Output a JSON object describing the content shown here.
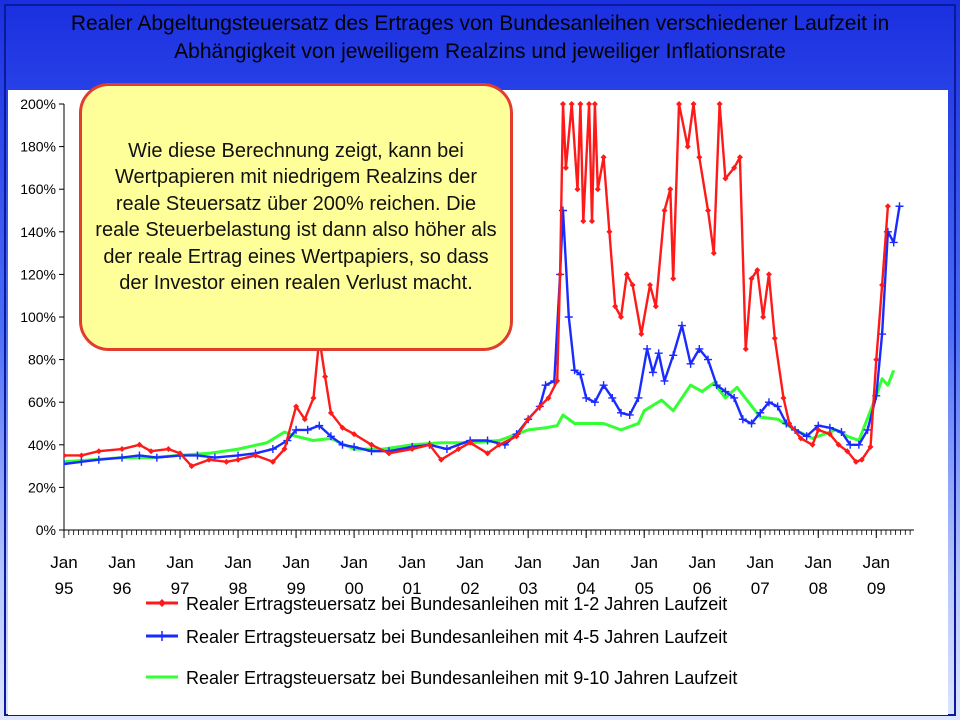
{
  "slide": {
    "title": "Realer Abgeltungsteuersatz des Ertrages von Bundesanleihen verschiedener Laufzeit in\nAbhängigkeit von jeweiligem Realzins und jeweiliger Inflationsrate",
    "callout": "Wie diese Berechnung zeigt, kann bei Wertpapieren mit niedrigem Realzins der reale Steuersatz über 200% reichen. Die reale Steuerbelastung ist dann also höher als der reale Ertrag eines Wertpapiers, so dass der Investor einen realen Verlust macht."
  },
  "chart_data": {
    "type": "line",
    "x_unit": "year",
    "xlim": [
      1995.0,
      2009.65
    ],
    "ylim": [
      0,
      200
    ],
    "y_format": "percent",
    "grid": false,
    "legend_position": "bottom",
    "y_ticks": [
      "0%",
      "20%",
      "40%",
      "60%",
      "80%",
      "100%",
      "120%",
      "140%",
      "160%",
      "180%",
      "200%"
    ],
    "x_ticks": [
      {
        "x": 1995,
        "top": "Jan",
        "bottom": "95"
      },
      {
        "x": 1996,
        "top": "Jan",
        "bottom": "96"
      },
      {
        "x": 1997,
        "top": "Jan",
        "bottom": "97"
      },
      {
        "x": 1998,
        "top": "Jan",
        "bottom": "98"
      },
      {
        "x": 1999,
        "top": "Jan",
        "bottom": "99"
      },
      {
        "x": 2000,
        "top": "Jan",
        "bottom": "00"
      },
      {
        "x": 2001,
        "top": "Jan",
        "bottom": "01"
      },
      {
        "x": 2002,
        "top": "Jan",
        "bottom": "02"
      },
      {
        "x": 2003,
        "top": "Jan",
        "bottom": "03"
      },
      {
        "x": 2004,
        "top": "Jan",
        "bottom": "04"
      },
      {
        "x": 2005,
        "top": "Jan",
        "bottom": "05"
      },
      {
        "x": 2006,
        "top": "Jan",
        "bottom": "06"
      },
      {
        "x": 2007,
        "top": "Jan",
        "bottom": "07"
      },
      {
        "x": 2008,
        "top": "Jan",
        "bottom": "08"
      },
      {
        "x": 2009,
        "top": "Jan",
        "bottom": "09"
      }
    ],
    "series": [
      {
        "name": "Realer Ertragsteuersatz bei Bundesanleihen mit 1-2 Jahren Laufzeit",
        "color": "#ff1a1a",
        "marker": "diamond",
        "points": [
          [
            1995.0,
            35
          ],
          [
            1995.3,
            35
          ],
          [
            1995.6,
            37
          ],
          [
            1996.0,
            38
          ],
          [
            1996.3,
            40
          ],
          [
            1996.5,
            37
          ],
          [
            1996.8,
            38
          ],
          [
            1997.0,
            36
          ],
          [
            1997.2,
            30
          ],
          [
            1997.5,
            33
          ],
          [
            1997.8,
            32
          ],
          [
            1998.0,
            33
          ],
          [
            1998.3,
            35
          ],
          [
            1998.6,
            32
          ],
          [
            1998.8,
            38
          ],
          [
            1999.0,
            58
          ],
          [
            1999.15,
            52
          ],
          [
            1999.3,
            62
          ],
          [
            1999.4,
            90
          ],
          [
            1999.5,
            72
          ],
          [
            1999.6,
            55
          ],
          [
            1999.8,
            48
          ],
          [
            2000.0,
            45
          ],
          [
            2000.3,
            40
          ],
          [
            2000.6,
            36
          ],
          [
            2001.0,
            38
          ],
          [
            2001.3,
            40
          ],
          [
            2001.5,
            33
          ],
          [
            2001.8,
            38
          ],
          [
            2002.0,
            41
          ],
          [
            2002.3,
            36
          ],
          [
            2002.5,
            40
          ],
          [
            2002.8,
            44
          ],
          [
            2003.0,
            52
          ],
          [
            2003.2,
            58
          ],
          [
            2003.35,
            62
          ],
          [
            2003.5,
            70
          ],
          [
            2003.55,
            120
          ],
          [
            2003.6,
            200
          ],
          [
            2003.65,
            170
          ],
          [
            2003.75,
            200
          ],
          [
            2003.85,
            160
          ],
          [
            2003.9,
            200
          ],
          [
            2003.95,
            145
          ],
          [
            2004.05,
            200
          ],
          [
            2004.1,
            145
          ],
          [
            2004.15,
            200
          ],
          [
            2004.2,
            160
          ],
          [
            2004.3,
            175
          ],
          [
            2004.4,
            140
          ],
          [
            2004.5,
            105
          ],
          [
            2004.6,
            100
          ],
          [
            2004.7,
            120
          ],
          [
            2004.8,
            115
          ],
          [
            2004.95,
            92
          ],
          [
            2005.1,
            115
          ],
          [
            2005.2,
            105
          ],
          [
            2005.35,
            150
          ],
          [
            2005.45,
            160
          ],
          [
            2005.5,
            118
          ],
          [
            2005.6,
            200
          ],
          [
            2005.75,
            180
          ],
          [
            2005.85,
            200
          ],
          [
            2005.95,
            175
          ],
          [
            2006.1,
            150
          ],
          [
            2006.2,
            130
          ],
          [
            2006.3,
            200
          ],
          [
            2006.4,
            165
          ],
          [
            2006.55,
            170
          ],
          [
            2006.65,
            175
          ],
          [
            2006.75,
            85
          ],
          [
            2006.85,
            118
          ],
          [
            2006.95,
            122
          ],
          [
            2007.05,
            100
          ],
          [
            2007.15,
            120
          ],
          [
            2007.25,
            90
          ],
          [
            2007.4,
            62
          ],
          [
            2007.5,
            50
          ],
          [
            2007.7,
            43
          ],
          [
            2007.9,
            40
          ],
          [
            2008.0,
            47
          ],
          [
            2008.2,
            45
          ],
          [
            2008.35,
            40
          ],
          [
            2008.5,
            37
          ],
          [
            2008.65,
            32
          ],
          [
            2008.75,
            33
          ],
          [
            2008.9,
            39
          ],
          [
            2009.0,
            80
          ],
          [
            2009.1,
            115
          ],
          [
            2009.2,
            152
          ]
        ]
      },
      {
        "name": "Realer Ertragsteuersatz bei Bundesanleihen mit 4-5 Jahren Laufzeit",
        "color": "#1a2bff",
        "marker": "plus",
        "points": [
          [
            1995.0,
            31
          ],
          [
            1995.3,
            32
          ],
          [
            1995.6,
            33
          ],
          [
            1996.0,
            34
          ],
          [
            1996.3,
            35
          ],
          [
            1996.6,
            34
          ],
          [
            1997.0,
            35
          ],
          [
            1997.3,
            35
          ],
          [
            1997.6,
            34
          ],
          [
            1998.0,
            35
          ],
          [
            1998.3,
            36
          ],
          [
            1998.6,
            38
          ],
          [
            1998.85,
            42
          ],
          [
            1999.0,
            47
          ],
          [
            1999.2,
            47
          ],
          [
            1999.4,
            49
          ],
          [
            1999.6,
            44
          ],
          [
            1999.8,
            40
          ],
          [
            2000.0,
            39
          ],
          [
            2000.3,
            37
          ],
          [
            2000.6,
            37
          ],
          [
            2001.0,
            39
          ],
          [
            2001.3,
            40
          ],
          [
            2001.6,
            38
          ],
          [
            2002.0,
            42
          ],
          [
            2002.3,
            42
          ],
          [
            2002.6,
            40
          ],
          [
            2002.8,
            45
          ],
          [
            2003.0,
            52
          ],
          [
            2003.2,
            58
          ],
          [
            2003.3,
            68
          ],
          [
            2003.45,
            70
          ],
          [
            2003.55,
            120
          ],
          [
            2003.6,
            150
          ],
          [
            2003.7,
            100
          ],
          [
            2003.8,
            75
          ],
          [
            2003.9,
            73
          ],
          [
            2004.0,
            62
          ],
          [
            2004.15,
            60
          ],
          [
            2004.3,
            68
          ],
          [
            2004.45,
            62
          ],
          [
            2004.6,
            55
          ],
          [
            2004.75,
            54
          ],
          [
            2004.9,
            62
          ],
          [
            2005.05,
            85
          ],
          [
            2005.15,
            74
          ],
          [
            2005.25,
            83
          ],
          [
            2005.35,
            70
          ],
          [
            2005.5,
            82
          ],
          [
            2005.65,
            96
          ],
          [
            2005.8,
            78
          ],
          [
            2005.95,
            85
          ],
          [
            2006.1,
            80
          ],
          [
            2006.25,
            68
          ],
          [
            2006.4,
            65
          ],
          [
            2006.55,
            62
          ],
          [
            2006.7,
            52
          ],
          [
            2006.85,
            50
          ],
          [
            2007.0,
            55
          ],
          [
            2007.15,
            60
          ],
          [
            2007.3,
            58
          ],
          [
            2007.45,
            50
          ],
          [
            2007.6,
            47
          ],
          [
            2007.8,
            44
          ],
          [
            2008.0,
            49
          ],
          [
            2008.2,
            48
          ],
          [
            2008.4,
            46
          ],
          [
            2008.55,
            40
          ],
          [
            2008.7,
            40
          ],
          [
            2008.85,
            47
          ],
          [
            2009.0,
            63
          ],
          [
            2009.1,
            92
          ],
          [
            2009.2,
            140
          ],
          [
            2009.3,
            135
          ],
          [
            2009.4,
            152
          ]
        ]
      },
      {
        "name": "Realer Ertragsteuersatz bei Bundesanleihen mit 9-10 Jahren Laufzeit",
        "color": "#33ff33",
        "marker": "none",
        "points": [
          [
            1995.0,
            32
          ],
          [
            1995.5,
            33
          ],
          [
            1996.0,
            34
          ],
          [
            1996.5,
            34
          ],
          [
            1997.0,
            35
          ],
          [
            1997.5,
            36
          ],
          [
            1998.0,
            38
          ],
          [
            1998.5,
            41
          ],
          [
            1998.8,
            46
          ],
          [
            1999.0,
            44
          ],
          [
            1999.3,
            42
          ],
          [
            1999.6,
            43
          ],
          [
            2000.0,
            38
          ],
          [
            2000.5,
            38
          ],
          [
            2001.0,
            40
          ],
          [
            2001.5,
            41
          ],
          [
            2002.0,
            41
          ],
          [
            2002.5,
            42
          ],
          [
            2003.0,
            47
          ],
          [
            2003.3,
            48
          ],
          [
            2003.5,
            49
          ],
          [
            2003.6,
            54
          ],
          [
            2003.8,
            50
          ],
          [
            2004.0,
            50
          ],
          [
            2004.3,
            50
          ],
          [
            2004.6,
            47
          ],
          [
            2004.9,
            50
          ],
          [
            2005.0,
            56
          ],
          [
            2005.3,
            61
          ],
          [
            2005.5,
            56
          ],
          [
            2005.8,
            68
          ],
          [
            2006.0,
            65
          ],
          [
            2006.2,
            69
          ],
          [
            2006.4,
            62
          ],
          [
            2006.6,
            67
          ],
          [
            2006.8,
            60
          ],
          [
            2007.0,
            53
          ],
          [
            2007.3,
            52
          ],
          [
            2007.6,
            47
          ],
          [
            2007.9,
            43
          ],
          [
            2008.1,
            45
          ],
          [
            2008.3,
            47
          ],
          [
            2008.5,
            44
          ],
          [
            2008.7,
            42
          ],
          [
            2009.0,
            63
          ],
          [
            2009.1,
            71
          ],
          [
            2009.2,
            68
          ],
          [
            2009.3,
            75
          ]
        ]
      }
    ]
  }
}
